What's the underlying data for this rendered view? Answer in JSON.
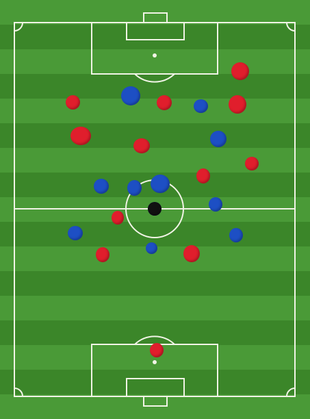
{
  "colors": {
    "grass_light": "#4a9a37",
    "grass_dark": "#3b8629",
    "line": "#f1f4e6",
    "team_red": "#e01e2c",
    "team_blue": "#1d4fc4",
    "ball": "#111111"
  },
  "pitch": {
    "stripe_count": 17
  },
  "markers": [
    {
      "team": "red",
      "shape": "dot"
    },
    {
      "team": "red",
      "shape": "dot"
    },
    {
      "team": "red",
      "shape": "dot"
    },
    {
      "team": "red",
      "shape": "dot"
    },
    {
      "team": "red",
      "shape": "dot"
    },
    {
      "team": "red",
      "shape": "dot"
    },
    {
      "team": "red",
      "shape": "dot"
    },
    {
      "team": "red",
      "shape": "dot"
    },
    {
      "team": "red",
      "shape": "dot"
    },
    {
      "team": "red",
      "shape": "dot"
    },
    {
      "team": "red",
      "shape": "dot"
    },
    {
      "team": "red",
      "shape": "dot"
    },
    {
      "team": "blue",
      "shape": "dot"
    },
    {
      "team": "blue",
      "shape": "dot"
    },
    {
      "team": "blue",
      "shape": "dot"
    },
    {
      "team": "blue",
      "shape": "dot"
    },
    {
      "team": "blue",
      "shape": "dot"
    },
    {
      "team": "blue",
      "shape": "dot"
    },
    {
      "team": "blue",
      "shape": "dot"
    },
    {
      "team": "blue",
      "shape": "dot"
    },
    {
      "team": "blue",
      "shape": "dot"
    },
    {
      "team": "blue",
      "shape": "dot"
    },
    {
      "team": "blue",
      "shape": "dot"
    },
    {
      "team": "ball",
      "shape": "dot"
    }
  ]
}
